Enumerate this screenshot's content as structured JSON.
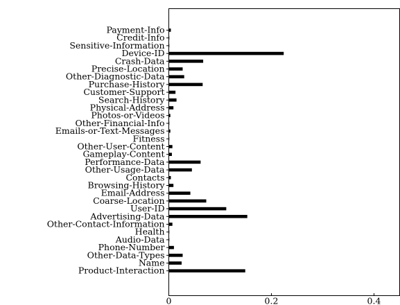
{
  "chart_data": {
    "type": "bar",
    "orientation": "horizontal",
    "title": "",
    "xlabel": "",
    "ylabel": "",
    "xlim": [
      0,
      0.45
    ],
    "xticks": [
      0,
      0.2,
      0.4
    ],
    "xtick_labels": [
      "0",
      "0.2",
      "0.4"
    ],
    "grid": false,
    "bar_color": "#000000",
    "categories": [
      "Payment-Info",
      "Credit-Info",
      "Sensitive-Information",
      "Device-ID",
      "Crash-Data",
      "Precise-Location",
      "Other-Diagnostic-Data",
      "Purchase-History",
      "Customer-Support",
      "Search-History",
      "Physical-Address",
      "Photos-or-Videos",
      "Other-Financial-Info",
      "Emails-or-Text-Messages",
      "Fitness",
      "Other-User-Content",
      "Gameplay-Content",
      "Performance-Data",
      "Other-Usage-Data",
      "Contacts",
      "Browsing-History",
      "Email-Address",
      "Coarse-Location",
      "User-ID",
      "Advertising-Data",
      "Other-Contact-Information",
      "Health",
      "Audio-Data",
      "Phone-Number",
      "Other-Data-Types",
      "Name",
      "Product-Interaction"
    ],
    "values": [
      0.004,
      0.001,
      0.001,
      0.224,
      0.067,
      0.027,
      0.03,
      0.066,
      0.013,
      0.015,
      0.009,
      0.003,
      0.001,
      0.003,
      0.001,
      0.007,
      0.006,
      0.062,
      0.045,
      0.004,
      0.009,
      0.042,
      0.073,
      0.112,
      0.153,
      0.007,
      0.001,
      0.001,
      0.01,
      0.027,
      0.025,
      0.149
    ]
  }
}
